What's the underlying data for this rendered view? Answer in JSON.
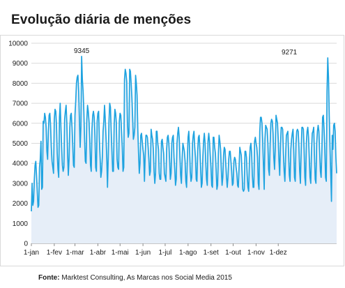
{
  "title": "Evolução diária de menções",
  "source_label": "Fonte:",
  "source_text": "Marktest Consulting, As Marcas nos Social Media 2015",
  "chart_data": {
    "type": "area",
    "xlabel": "",
    "ylabel": "",
    "ylim": [
      0,
      10000
    ],
    "yticks": [
      0,
      1000,
      2000,
      3000,
      4000,
      5000,
      6000,
      7000,
      8000,
      9000,
      10000
    ],
    "xticks": [
      "1-jan",
      "1-fev",
      "1-mar",
      "1-abr",
      "1-mai",
      "1-jun",
      "1-jul",
      "1-ago",
      "1-set",
      "1-out",
      "1-nov",
      "1-dez"
    ],
    "xtick_day_index": [
      0,
      31,
      59,
      90,
      120,
      151,
      181,
      212,
      243,
      273,
      304,
      334
    ],
    "grid": "horizontal",
    "legend": "none",
    "colors": {
      "line": "#1fa3e0",
      "fill": "#e6eef8"
    },
    "annotations": [
      {
        "label": "9345",
        "day": 68,
        "value": 9345
      },
      {
        "label": "9271",
        "day": 349,
        "value": 9271
      }
    ],
    "series": [
      {
        "values": [
          1600,
          3000,
          1900,
          2100,
          3200,
          3900,
          4100,
          3400,
          2600,
          1800,
          1900,
          3800,
          4200,
          5100,
          2700,
          2800,
          6100,
          6000,
          6500,
          6300,
          5800,
          4600,
          4200,
          5600,
          6400,
          6500,
          5900,
          4800,
          4100,
          3800,
          3500,
          6200,
          6700,
          6600,
          5900,
          4500,
          3700,
          3300,
          6300,
          7000,
          5800,
          4800,
          3900,
          3600,
          3800,
          6200,
          6600,
          6900,
          6000,
          4500,
          3400,
          4200,
          5800,
          6400,
          6500,
          5800,
          4900,
          3900,
          3800,
          6400,
          7100,
          8000,
          8300,
          8400,
          7600,
          6200,
          4800,
          5800,
          9345,
          8200,
          7600,
          6600,
          5200,
          4100,
          4000,
          6200,
          6900,
          6600,
          6100,
          5200,
          3900,
          3600,
          5700,
          6400,
          6600,
          6300,
          5400,
          3800,
          3600,
          6100,
          6500,
          6600,
          5200,
          4300,
          3300,
          3600,
          4300,
          5600,
          6100,
          6900,
          6200,
          5300,
          4300,
          2800,
          4300,
          6100,
          7000,
          6800,
          5600,
          4600,
          3600,
          3600,
          5900,
          6700,
          6500,
          6000,
          4200,
          3800,
          3700,
          6100,
          6500,
          6400,
          5600,
          4800,
          3600,
          3800,
          8200,
          8700,
          8500,
          8100,
          6000,
          5300,
          5500,
          8700,
          8600,
          8000,
          7300,
          6300,
          5200,
          5400,
          5800,
          8400,
          8000,
          7400,
          5700,
          4500,
          3500,
          4000,
          5400,
          5500,
          5100,
          4700,
          4400,
          3100,
          4400,
          5400,
          5400,
          5300,
          4800,
          4200,
          3400,
          3600,
          5700,
          5400,
          5200,
          4700,
          3600,
          3000,
          3500,
          5600,
          5600,
          5000,
          4700,
          3500,
          3200,
          3200,
          5100,
          5200,
          4800,
          4500,
          3500,
          3300,
          3100,
          4700,
          5300,
          5400,
          5000,
          4200,
          3200,
          3500,
          5000,
          5300,
          5400,
          4300,
          3700,
          2900,
          3200,
          5000,
          5500,
          5800,
          5300,
          4300,
          3400,
          3000,
          4300,
          5000,
          4800,
          4600,
          4100,
          3100,
          2800,
          4200,
          5300,
          5600,
          4800,
          3600,
          3100,
          3300,
          5000,
          5400,
          5600,
          4800,
          4300,
          3200,
          3100,
          4600,
          5300,
          5400,
          4700,
          3800,
          2800,
          3000,
          4300,
          5100,
          5500,
          5000,
          4000,
          3200,
          2900,
          5100,
          5500,
          5100,
          4400,
          3800,
          2900,
          2800,
          5300,
          5300,
          4800,
          4500,
          3700,
          2700,
          2900,
          4500,
          5400,
          5100,
          4700,
          3700,
          2900,
          3300,
          4400,
          4800,
          4700,
          4000,
          3300,
          2800,
          3300,
          4200,
          4600,
          4600,
          4100,
          3600,
          2900,
          3000,
          4100,
          4300,
          4200,
          3800,
          3500,
          2900,
          2800,
          3800,
          4800,
          4600,
          4400,
          3600,
          2700,
          2600,
          2700,
          4600,
          4600,
          4300,
          3400,
          2800,
          2600,
          4100,
          4800,
          5000,
          4500,
          3400,
          2800,
          2800,
          5100,
          5300,
          5000,
          4800,
          4300,
          3000,
          2700,
          5600,
          6300,
          6300,
          6000,
          5100,
          3900,
          2700,
          5200,
          5900,
          5800,
          5700,
          5000,
          3700,
          3400,
          4900,
          6000,
          6200,
          6100,
          5500,
          4300,
          3700,
          4800,
          6400,
          6200,
          6000,
          5200,
          4100,
          3400,
          4900,
          5800,
          5800,
          5700,
          4500,
          3600,
          3100,
          4400,
          5400,
          5500,
          5600,
          4500,
          3400,
          3100,
          4700,
          5200,
          5500,
          5700,
          4600,
          3300,
          3100,
          5000,
          5600,
          5700,
          5600,
          4800,
          3600,
          3000,
          4600,
          5800,
          5800,
          5700,
          4700,
          3300,
          2900,
          5000,
          5600,
          5800,
          5300,
          4300,
          3300,
          3000,
          4600,
          5500,
          5600,
          5800,
          4400,
          3200,
          3000,
          5000,
          5600,
          5900,
          5600,
          4600,
          3600,
          3300,
          4600,
          6300,
          6400,
          5700,
          4700,
          3300,
          3100,
          7600,
          9271,
          8300,
          6400,
          4800,
          3500,
          2100,
          5400,
          4700,
          5900,
          6000,
          5600,
          4300,
          3500
        ]
      }
    ]
  }
}
